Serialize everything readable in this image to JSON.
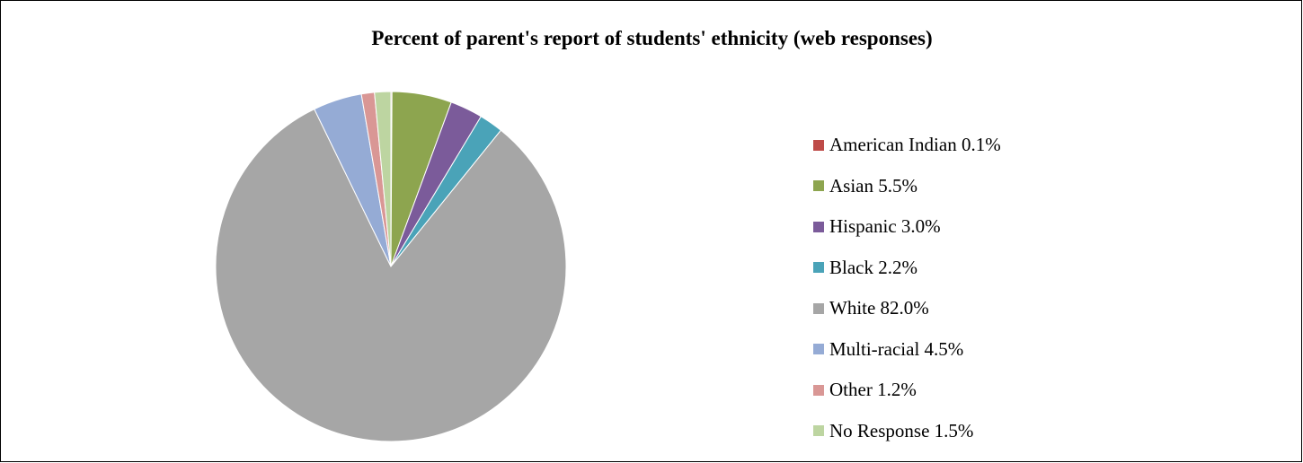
{
  "chart_data": {
    "type": "pie",
    "title": "Percent of parent's report of students' ethnicity (web responses)",
    "slices": [
      {
        "label": "American Indian",
        "value": 0.1,
        "color": "#BE4B48"
      },
      {
        "label": "Asian",
        "value": 5.5,
        "color": "#8DA54F"
      },
      {
        "label": "Hispanic",
        "value": 3.0,
        "color": "#7B5B9A"
      },
      {
        "label": "Black",
        "value": 2.2,
        "color": "#4AA3B8"
      },
      {
        "label": "White",
        "value": 82.0,
        "color": "#A6A6A6"
      },
      {
        "label": "Multi-racial",
        "value": 4.5,
        "color": "#95ABD5"
      },
      {
        "label": "Other",
        "value": 1.2,
        "color": "#D99795"
      },
      {
        "label": "No Response",
        "value": 1.5,
        "color": "#BDD5A1"
      }
    ],
    "legend": [
      "American Indian 0.1%",
      "Asian 5.5%",
      "Hispanic 3.0%",
      "Black 2.2%",
      "White 82.0%",
      "Multi-racial 4.5%",
      "Other 1.2%",
      "No Response 1.5%"
    ],
    "legend_position": "right"
  }
}
